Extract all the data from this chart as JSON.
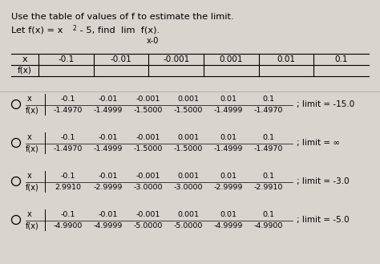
{
  "bg_color": "#d8d4ce",
  "text_color": "black",
  "title": "Use the table of values of f to estimate the limit.",
  "header_vals": [
    "-0.1",
    "-0.01",
    "-0.001",
    "0.001",
    "0.01",
    "0.1"
  ],
  "options": [
    {
      "x_vals": [
        "-0.1",
        "-0.01",
        "-0.001",
        "0.001",
        "0.01",
        "0.1"
      ],
      "fx_vals": [
        "-1.4970",
        "-1.4999",
        "-1.5000",
        "-1.5000",
        "-1.4999",
        "-1.4970"
      ],
      "limit": "; limit = -15.0"
    },
    {
      "x_vals": [
        "-0.1",
        "-0.01",
        "-0.001",
        "0.001",
        "0.01",
        "0.1"
      ],
      "fx_vals": [
        "-1.4970",
        "-1.4999",
        "-1.5000",
        "-1.5000",
        "-1.4999",
        "-1.4970"
      ],
      "limit": "; limit = ∞"
    },
    {
      "x_vals": [
        "-0.1",
        "-0.01",
        "-0.001",
        "0.001",
        "0.01",
        "0.1"
      ],
      "fx_vals": [
        "2.9910",
        "-2.9999",
        "-3.0000",
        "-3.0000",
        "-2.9999",
        "-2.9910"
      ],
      "limit": "; limit = -3.0"
    },
    {
      "x_vals": [
        "-0.1",
        "-0.01",
        "-0.001",
        "0.001",
        "0.01",
        "0.1"
      ],
      "fx_vals": [
        "-4.9900",
        "-4.9999",
        "-5.0000",
        "-5.0000",
        "-4.9999",
        "-4.9900"
      ],
      "limit": "; limit = -5.0"
    }
  ]
}
